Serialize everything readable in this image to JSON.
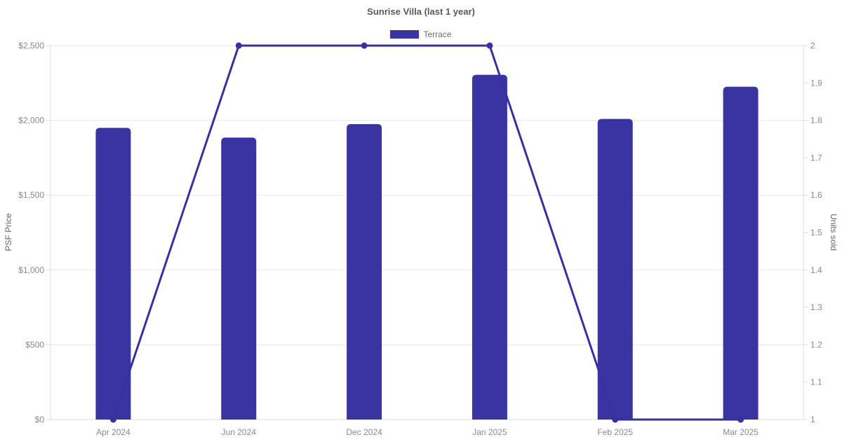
{
  "chart_data": {
    "type": "bar",
    "title": "Sunrise Villa (last 1 year)",
    "categories": [
      "Apr 2024",
      "Jun 2024",
      "Dec 2024",
      "Jan 2025",
      "Feb 2025",
      "Mar 2025"
    ],
    "series": [
      {
        "name": "Terrace",
        "type": "bar",
        "axis": "left",
        "color": "#3a34a2",
        "values": [
          1950,
          1885,
          1975,
          2305,
          2010,
          2225
        ]
      },
      {
        "name": "Units sold",
        "type": "line",
        "axis": "right",
        "color": "#37309e",
        "values": [
          1,
          2,
          2,
          2,
          1,
          1
        ]
      }
    ],
    "left_axis": {
      "label": "PSF Price",
      "min": 0,
      "max": 2500,
      "step": 500,
      "tick_labels": [
        "$0",
        "$500",
        "$1,000",
        "$1,500",
        "$2,000",
        "$2,500"
      ]
    },
    "right_axis": {
      "label": "Units sold",
      "min": 1,
      "max": 2,
      "step": 0.1,
      "tick_labels": [
        "1",
        "1.1",
        "1.2",
        "1.3",
        "1.4",
        "1.5",
        "1.6",
        "1.7",
        "1.8",
        "1.9",
        "2"
      ]
    },
    "legend": {
      "position": "top",
      "entries": [
        {
          "label": "Terrace",
          "color": "#3a34a2"
        }
      ]
    },
    "grid": {
      "horizontal": true,
      "vertical": false
    }
  }
}
